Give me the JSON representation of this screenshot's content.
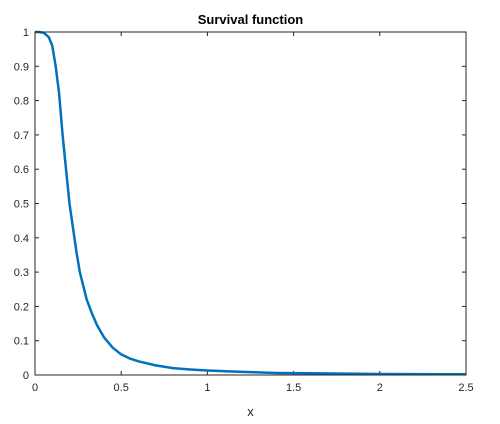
{
  "chart_data": {
    "type": "line",
    "title": "Survival function",
    "xlabel": "x",
    "ylabel": "",
    "xlim": [
      0,
      2.5
    ],
    "ylim": [
      0,
      1
    ],
    "xticks": [
      0,
      0.5,
      1,
      1.5,
      2,
      2.5
    ],
    "xtick_labels": [
      "0",
      "0.5",
      "1",
      "1.5",
      "2",
      "2.5"
    ],
    "yticks": [
      0,
      0.1,
      0.2,
      0.3,
      0.4,
      0.5,
      0.6,
      0.7,
      0.8,
      0.9,
      1
    ],
    "ytick_labels": [
      "0",
      "0.1",
      "0.2",
      "0.3",
      "0.4",
      "0.5",
      "0.6",
      "0.7",
      "0.8",
      "0.9",
      "1"
    ],
    "grid": false,
    "line_color": "#0072BD",
    "axis_color": "#262626",
    "series": [
      {
        "x": [
          0,
          0.02,
          0.05,
          0.08,
          0.1,
          0.12,
          0.14,
          0.16,
          0.18,
          0.2,
          0.22,
          0.24,
          0.26,
          0.28,
          0.3,
          0.33,
          0.36,
          0.4,
          0.45,
          0.5,
          0.55,
          0.6,
          0.7,
          0.8,
          0.9,
          1.0,
          1.2,
          1.4,
          1.6,
          1.8,
          2.0,
          2.2,
          2.5
        ],
        "y": [
          1.0,
          1.0,
          0.998,
          0.985,
          0.96,
          0.9,
          0.82,
          0.7,
          0.6,
          0.5,
          0.43,
          0.36,
          0.3,
          0.26,
          0.22,
          0.18,
          0.145,
          0.11,
          0.08,
          0.06,
          0.048,
          0.04,
          0.028,
          0.02,
          0.016,
          0.013,
          0.009,
          0.006,
          0.005,
          0.004,
          0.003,
          0.0025,
          0.002
        ]
      }
    ]
  }
}
